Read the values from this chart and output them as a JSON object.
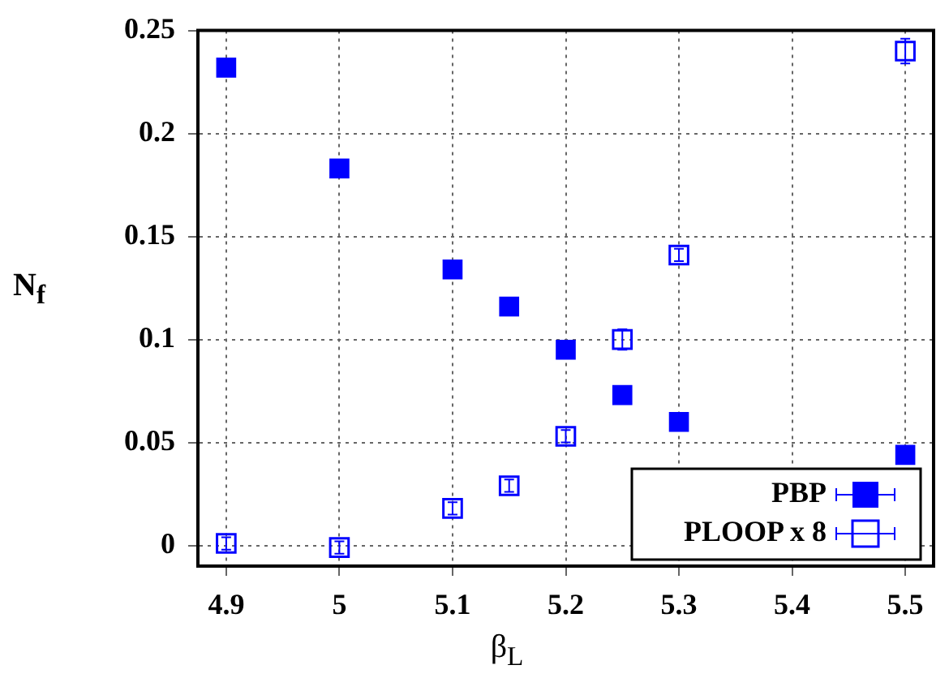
{
  "chart_data": {
    "type": "scatter",
    "xlabel": "β$_{L}$",
    "ylabel": "N$_{f}$",
    "xlim": [
      4.875,
      5.525
    ],
    "xticks": [
      4.9,
      5,
      5.1,
      5.2,
      5.3,
      5.4,
      5.5
    ],
    "ylim": [
      -0.01,
      0.25
    ],
    "yticks": [
      0,
      0.05,
      0.1,
      0.15,
      0.2,
      0.25
    ],
    "grid": true,
    "legend": "bottom right",
    "marker": "square",
    "series": [
      {
        "name": "PBP",
        "color": "#0000ff",
        "x": [
          4.9,
          5,
          5.1,
          5.15,
          5.2,
          5.25,
          5.3,
          5.5
        ],
        "values": [
          0.232,
          0.183,
          0.134,
          0.116,
          0.095,
          0.073,
          0.06,
          0.044
        ]
      },
      {
        "name": "PLOOP x 8",
        "color": "#0000ff",
        "x": [
          4.9,
          5,
          5.1,
          5.15,
          5.2,
          5.25,
          5.3,
          5.5
        ],
        "values": [
          0.001,
          -0.001,
          0.018,
          0.029,
          0.053,
          0.1,
          0.141,
          0.24
        ],
        "errors": [
          0.003,
          0.003,
          0.003,
          0.003,
          0.003,
          0.005,
          0.003,
          0.006
        ]
      }
    ]
  }
}
